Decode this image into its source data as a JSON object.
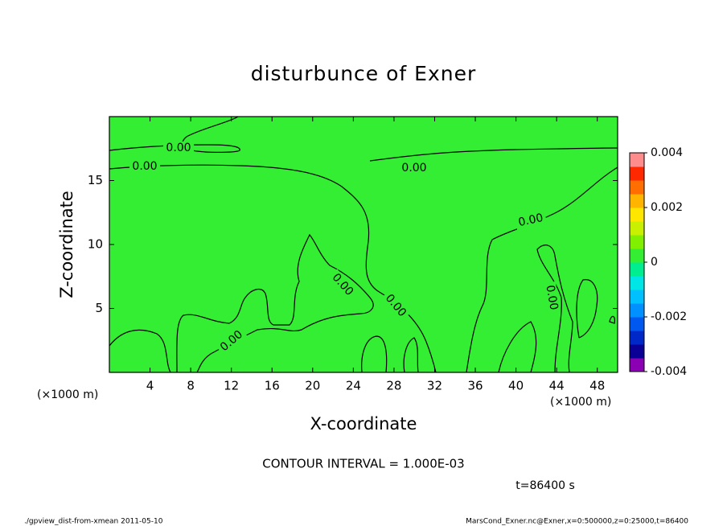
{
  "chart_data": {
    "type": "contour",
    "title": "disturbunce of Exner",
    "x_label": "X-coordinate",
    "y_label": "Z-coordinate",
    "x_unit": "(×1000 m)",
    "xlim": [
      0,
      50
    ],
    "xticks": [
      4,
      8,
      12,
      16,
      20,
      24,
      28,
      32,
      36,
      40,
      44,
      48
    ],
    "ylim": [
      0,
      20
    ],
    "yticks": [
      5,
      10,
      15
    ],
    "fill_color": "#33ee33",
    "contour_labels": [
      "0.00",
      "0.00",
      "0.00",
      "0.00",
      "0.00",
      "0.00",
      "0.00",
      "0.00"
    ],
    "colorbar": {
      "lim": [
        -0.004,
        0.004
      ],
      "ticks": [
        -0.004,
        -0.002,
        0,
        0.002,
        0.004
      ],
      "colors": [
        "#8c00b4",
        "#0a0096",
        "#0028c8",
        "#0058f0",
        "#0090ff",
        "#00c0ff",
        "#00e6e6",
        "#00ee90",
        "#33ee33",
        "#80f000",
        "#c8f000",
        "#ffe600",
        "#ffb400",
        "#ff6e00",
        "#ff2800",
        "#ff8c8c"
      ]
    },
    "contour_interval": "CONTOUR INTERVAL = 1.000E-03",
    "time_label": "t=86400 s",
    "footer_left": "./gpview_dist-from-xmean  2011-05-10",
    "footer_right": "MarsCond_Exner.nc@Exner,x=0:500000,z=0:25000,t=86400"
  }
}
